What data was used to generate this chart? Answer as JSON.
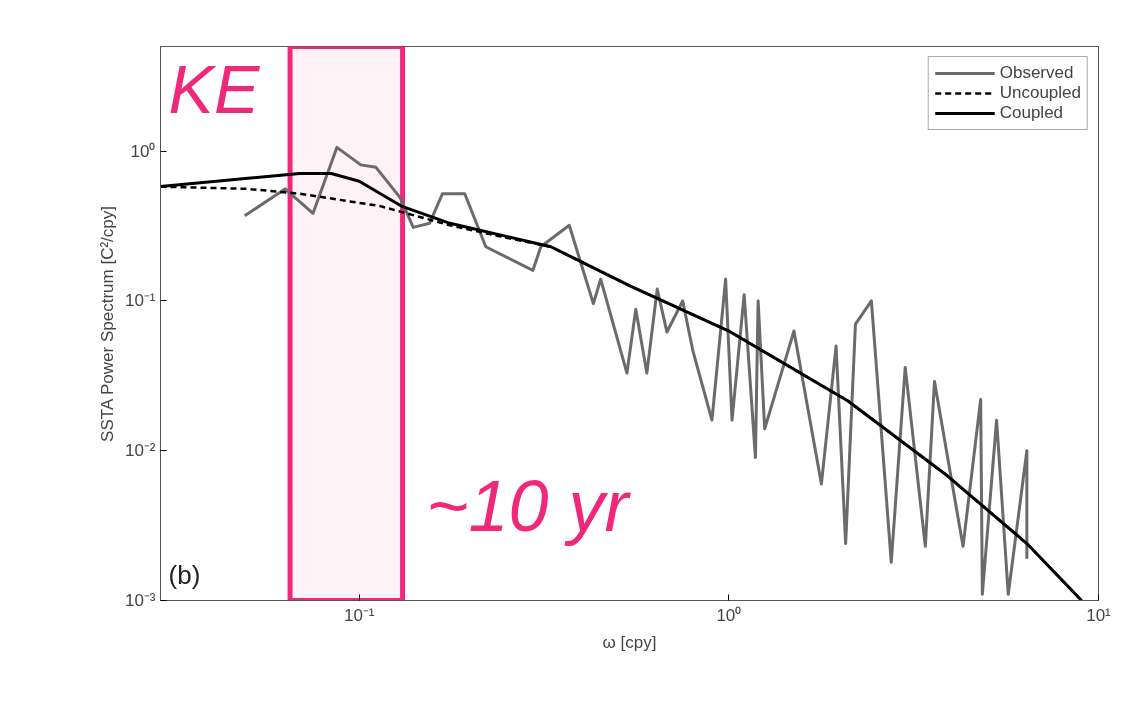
{
  "chart_data": {
    "type": "line",
    "xlabel": "ω [cpy]",
    "ylabel": "SSTA Power Spectrum [C²/cpy]",
    "log": "xy",
    "xlim": [
      0.029,
      10
    ],
    "ylim": [
      0.001,
      5
    ],
    "xticks": [
      {
        "value": 0.1,
        "label": "10⁻¹"
      },
      {
        "value": 1,
        "label": "10⁰"
      },
      {
        "value": 10,
        "label": "10¹"
      }
    ],
    "yticks": [
      {
        "value": 0.001,
        "label": "10⁻³"
      },
      {
        "value": 0.01,
        "label": "10⁻²"
      },
      {
        "value": 0.1,
        "label": "10⁻¹"
      },
      {
        "value": 1,
        "label": "10⁰"
      }
    ],
    "grid": false,
    "legend": "top right",
    "series": [
      {
        "name": "Observed",
        "color": "#6b6b6b",
        "line_style": "solid",
        "x": [
          0.049,
          0.063,
          0.075,
          0.087,
          0.101,
          0.111,
          0.129,
          0.14,
          0.155,
          0.168,
          0.193,
          0.22,
          0.295,
          0.31,
          0.37,
          0.43,
          0.45,
          0.53,
          0.56,
          0.6,
          0.64,
          0.68,
          0.75,
          0.8,
          0.9,
          0.98,
          1.02,
          1.1,
          1.18,
          1.2,
          1.25,
          1.5,
          1.78,
          1.95,
          2.07,
          2.2,
          2.43,
          2.75,
          3.0,
          3.4,
          3.6,
          4.3,
          4.8,
          4.85,
          5.3,
          5.7,
          6.4,
          6.4
        ],
        "values": [
          0.37,
          0.56,
          0.385,
          1.06,
          0.81,
          0.78,
          0.49,
          0.31,
          0.33,
          0.52,
          0.52,
          0.23,
          0.16,
          0.23,
          0.32,
          0.096,
          0.14,
          0.033,
          0.088,
          0.033,
          0.12,
          0.062,
          0.1,
          0.046,
          0.016,
          0.14,
          0.016,
          0.11,
          0.009,
          0.1,
          0.014,
          0.063,
          0.006,
          0.05,
          0.0024,
          0.07,
          0.1,
          0.0018,
          0.036,
          0.0023,
          0.029,
          0.0023,
          0.022,
          0.0011,
          0.016,
          0.0011,
          0.01,
          0.0019
        ]
      },
      {
        "name": "Uncoupled",
        "color": "#000000",
        "line_style": "dashed",
        "x": [
          0.029,
          0.05,
          0.069,
          0.114,
          0.176,
          0.24,
          0.33,
          0.54,
          1.0,
          2.1,
          3.9,
          6.4,
          9.0
        ],
        "values": [
          0.58,
          0.56,
          0.52,
          0.43,
          0.32,
          0.27,
          0.23,
          0.126,
          0.063,
          0.0215,
          0.0068,
          0.0024,
          0.001
        ]
      },
      {
        "name": "Coupled",
        "color": "#000000",
        "line_style": "solid",
        "x": [
          0.029,
          0.069,
          0.084,
          0.1,
          0.13,
          0.176,
          0.33,
          0.54,
          1.0,
          2.1,
          3.9,
          6.4,
          9.0
        ],
        "values": [
          0.58,
          0.71,
          0.71,
          0.63,
          0.43,
          0.33,
          0.23,
          0.126,
          0.063,
          0.0215,
          0.0068,
          0.0024,
          0.001
        ]
      }
    ],
    "bands": [
      {
        "axis": "x",
        "from": 0.065,
        "to": 0.131,
        "color": "#f0287a"
      }
    ],
    "annotations": [
      "KE",
      "~10 yr",
      "(b)"
    ]
  }
}
